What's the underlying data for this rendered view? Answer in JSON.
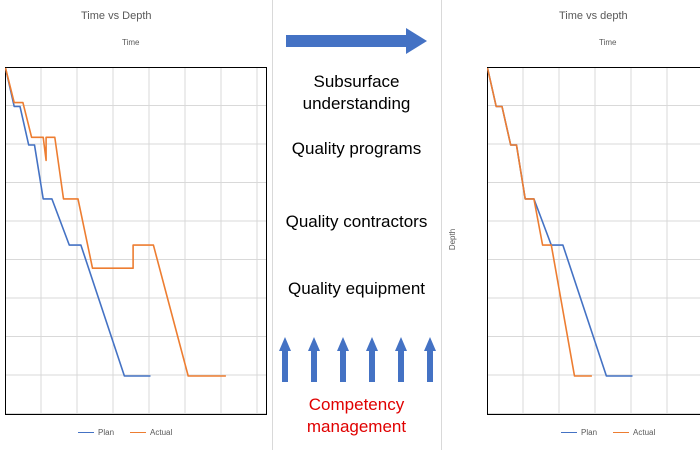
{
  "chart_data": [
    {
      "type": "line",
      "title": "Time vs Depth",
      "xlabel": "Time",
      "ylabel": "",
      "xlim": [
        0,
        10
      ],
      "ylim": [
        0,
        10
      ],
      "y_inverted": true,
      "grid": true,
      "legend": "bottom",
      "series": [
        {
          "name": "Plan",
          "color": "#4472C4",
          "points": [
            [
              0,
              0
            ],
            [
              0.3,
              1
            ],
            [
              0.5,
              1
            ],
            [
              0.8,
              2
            ],
            [
              1,
              2
            ],
            [
              1.3,
              3.4
            ],
            [
              1.6,
              3.4
            ],
            [
              2.2,
              4.6
            ],
            [
              2.6,
              4.6
            ],
            [
              4.1,
              8
            ],
            [
              5.0,
              8
            ]
          ]
        },
        {
          "name": "Actual",
          "color": "#ED7D31",
          "points": [
            [
              0,
              0
            ],
            [
              0.3,
              0.9
            ],
            [
              0.6,
              0.9
            ],
            [
              0.9,
              1.8
            ],
            [
              1.3,
              1.8
            ],
            [
              1.4,
              2.4
            ],
            [
              1.4,
              1.8
            ],
            [
              1.7,
              1.8
            ],
            [
              2.0,
              3.4
            ],
            [
              2.5,
              3.4
            ],
            [
              3.0,
              5.2
            ],
            [
              4.4,
              5.2
            ],
            [
              4.4,
              4.6
            ],
            [
              5.1,
              4.6
            ],
            [
              6.3,
              8
            ],
            [
              7.6,
              8
            ]
          ]
        }
      ]
    },
    {
      "type": "line",
      "title": "Time vs depth",
      "xlabel": "Time",
      "ylabel": "Depth",
      "xlim": [
        0,
        10
      ],
      "ylim": [
        0,
        10
      ],
      "y_inverted": true,
      "grid": true,
      "legend": "bottom",
      "series": [
        {
          "name": "Plan",
          "color": "#4472C4",
          "points": [
            [
              0,
              0
            ],
            [
              0.3,
              1
            ],
            [
              0.5,
              1
            ],
            [
              0.8,
              2
            ],
            [
              1,
              2
            ],
            [
              1.3,
              3.4
            ],
            [
              1.6,
              3.4
            ],
            [
              2.2,
              4.6
            ],
            [
              2.6,
              4.6
            ],
            [
              4.1,
              8
            ],
            [
              5.0,
              8
            ]
          ]
        },
        {
          "name": "Actual",
          "color": "#ED7D31",
          "points": [
            [
              0,
              0
            ],
            [
              0.3,
              1
            ],
            [
              0.5,
              1
            ],
            [
              0.8,
              2
            ],
            [
              1,
              2
            ],
            [
              1.3,
              3.4
            ],
            [
              1.6,
              3.4
            ],
            [
              1.9,
              4.6
            ],
            [
              2.2,
              4.6
            ],
            [
              3.0,
              8
            ],
            [
              3.6,
              8
            ]
          ]
        }
      ]
    }
  ],
  "middle": {
    "items": [
      "Subsurface understanding",
      "Quality programs",
      "Quality contractors",
      "Quality equipment"
    ],
    "footer": "Competency management",
    "arrow_color": "#4472C4",
    "footer_color": "#E00000"
  }
}
